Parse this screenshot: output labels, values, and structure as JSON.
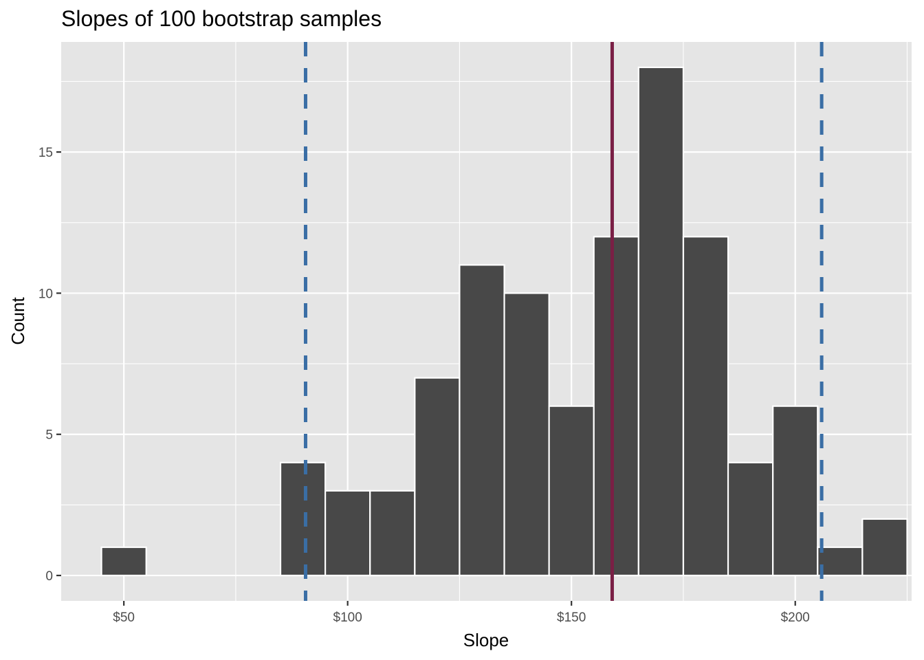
{
  "chart_data": {
    "type": "bar",
    "title": "Slopes of 100 bootstrap samples",
    "xlabel": "Slope",
    "ylabel": "Count",
    "bin_width": 10,
    "bins": [
      {
        "center": 50,
        "count": 1
      },
      {
        "center": 90,
        "count": 4
      },
      {
        "center": 100,
        "count": 3
      },
      {
        "center": 110,
        "count": 3
      },
      {
        "center": 120,
        "count": 7
      },
      {
        "center": 130,
        "count": 11
      },
      {
        "center": 140,
        "count": 10
      },
      {
        "center": 150,
        "count": 6
      },
      {
        "center": 160,
        "count": 12
      },
      {
        "center": 170,
        "count": 18
      },
      {
        "center": 180,
        "count": 12
      },
      {
        "center": 190,
        "count": 4
      },
      {
        "center": 200,
        "count": 6
      },
      {
        "center": 210,
        "count": 1
      },
      {
        "center": 220,
        "count": 2
      }
    ],
    "xlim": [
      36,
      226
    ],
    "ylim": [
      -0.9,
      18.9
    ],
    "x_ticks": [
      {
        "value": 50,
        "label": "$50"
      },
      {
        "value": 100,
        "label": "$100"
      },
      {
        "value": 150,
        "label": "$150"
      },
      {
        "value": 200,
        "label": "$200"
      }
    ],
    "y_ticks": [
      {
        "value": 0,
        "label": "0"
      },
      {
        "value": 5,
        "label": "5"
      },
      {
        "value": 10,
        "label": "10"
      },
      {
        "value": 15,
        "label": "15"
      }
    ],
    "reference_lines": [
      {
        "value": 90.6,
        "style": "dashed",
        "color": "#3a6ea5"
      },
      {
        "value": 159.1,
        "style": "solid",
        "color": "#7a1f45"
      },
      {
        "value": 205.9,
        "style": "dashed",
        "color": "#3a6ea5"
      }
    ],
    "grid": true,
    "colors": {
      "panel_background": "#e5e5e5",
      "grid": "#ffffff",
      "bar_fill": "#484848",
      "bar_outline": "#ffffff"
    }
  }
}
